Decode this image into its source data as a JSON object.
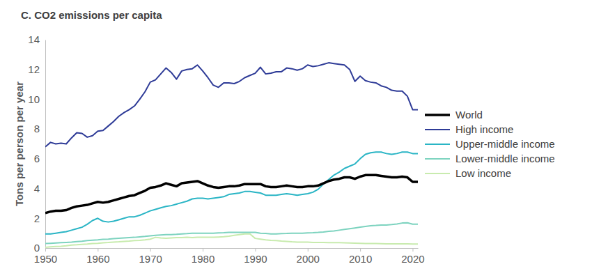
{
  "chart_data": {
    "type": "line",
    "title": "C. CO2 emissions per capita",
    "y_label": "Tons per person per year",
    "x": [
      1950,
      1951,
      1952,
      1953,
      1954,
      1955,
      1956,
      1957,
      1958,
      1959,
      1960,
      1961,
      1962,
      1963,
      1964,
      1965,
      1966,
      1967,
      1968,
      1969,
      1970,
      1971,
      1972,
      1973,
      1974,
      1975,
      1976,
      1977,
      1978,
      1979,
      1980,
      1981,
      1982,
      1983,
      1984,
      1985,
      1986,
      1987,
      1988,
      1989,
      1990,
      1991,
      1992,
      1993,
      1994,
      1995,
      1996,
      1997,
      1998,
      1999,
      2000,
      2001,
      2002,
      2003,
      2004,
      2005,
      2006,
      2007,
      2008,
      2009,
      2010,
      2011,
      2012,
      2013,
      2014,
      2015,
      2016,
      2017,
      2018,
      2019,
      2020,
      2021
    ],
    "xlim": [
      1950,
      2021
    ],
    "xticks": [
      1950,
      1960,
      1970,
      1980,
      1990,
      2000,
      2010,
      2020
    ],
    "ylim": [
      0,
      14
    ],
    "yticks": [
      0,
      2,
      4,
      6,
      8,
      10,
      12,
      14
    ],
    "grid": false,
    "legend": "right",
    "series": [
      {
        "name": "World",
        "color": "#000000",
        "values": [
          2.35,
          2.45,
          2.5,
          2.5,
          2.55,
          2.7,
          2.8,
          2.85,
          2.9,
          3.0,
          3.1,
          3.05,
          3.1,
          3.2,
          3.3,
          3.4,
          3.5,
          3.55,
          3.7,
          3.85,
          4.05,
          4.1,
          4.2,
          4.35,
          4.25,
          4.15,
          4.35,
          4.4,
          4.45,
          4.5,
          4.35,
          4.2,
          4.1,
          4.05,
          4.1,
          4.15,
          4.15,
          4.2,
          4.3,
          4.3,
          4.3,
          4.3,
          4.15,
          4.1,
          4.1,
          4.15,
          4.2,
          4.15,
          4.1,
          4.1,
          4.15,
          4.15,
          4.2,
          4.35,
          4.5,
          4.6,
          4.65,
          4.75,
          4.75,
          4.65,
          4.8,
          4.9,
          4.9,
          4.9,
          4.85,
          4.8,
          4.75,
          4.75,
          4.8,
          4.75,
          4.45,
          4.45
        ]
      },
      {
        "name": "High income",
        "color": "#2e3b97",
        "values": [
          6.8,
          7.1,
          7.0,
          7.05,
          7.0,
          7.4,
          7.75,
          7.7,
          7.45,
          7.55,
          7.85,
          7.9,
          8.2,
          8.5,
          8.85,
          9.1,
          9.3,
          9.55,
          10.0,
          10.5,
          11.15,
          11.3,
          11.7,
          12.1,
          11.8,
          11.35,
          11.9,
          12.0,
          12.05,
          12.3,
          11.9,
          11.45,
          10.95,
          10.8,
          11.1,
          11.1,
          11.05,
          11.2,
          11.45,
          11.6,
          11.75,
          12.15,
          11.7,
          11.75,
          11.85,
          11.85,
          12.1,
          12.05,
          11.95,
          12.05,
          12.3,
          12.2,
          12.25,
          12.35,
          12.45,
          12.4,
          12.35,
          12.3,
          12.0,
          11.2,
          11.55,
          11.25,
          11.15,
          11.1,
          10.9,
          10.8,
          10.6,
          10.55,
          10.55,
          10.2,
          9.3,
          9.3
        ]
      },
      {
        "name": "Upper-middle income",
        "color": "#2ab5c5",
        "values": [
          0.95,
          0.95,
          1.0,
          1.05,
          1.1,
          1.2,
          1.3,
          1.4,
          1.6,
          1.85,
          2.0,
          1.8,
          1.75,
          1.8,
          1.9,
          2.0,
          2.1,
          2.1,
          2.2,
          2.35,
          2.5,
          2.6,
          2.7,
          2.8,
          2.85,
          2.95,
          3.05,
          3.15,
          3.3,
          3.35,
          3.35,
          3.3,
          3.35,
          3.4,
          3.45,
          3.6,
          3.65,
          3.7,
          3.8,
          3.8,
          3.75,
          3.7,
          3.55,
          3.55,
          3.55,
          3.6,
          3.65,
          3.6,
          3.55,
          3.6,
          3.65,
          3.75,
          3.95,
          4.3,
          4.6,
          4.9,
          5.1,
          5.35,
          5.5,
          5.65,
          6.0,
          6.3,
          6.4,
          6.45,
          6.45,
          6.35,
          6.3,
          6.35,
          6.45,
          6.45,
          6.35,
          6.35
        ]
      },
      {
        "name": "Lower-middle income",
        "color": "#7dd3bf",
        "values": [
          0.3,
          0.32,
          0.34,
          0.36,
          0.38,
          0.4,
          0.43,
          0.46,
          0.5,
          0.53,
          0.55,
          0.58,
          0.6,
          0.63,
          0.66,
          0.68,
          0.7,
          0.72,
          0.75,
          0.78,
          0.82,
          0.85,
          0.88,
          0.9,
          0.9,
          0.92,
          0.95,
          0.97,
          1.0,
          1.0,
          1.0,
          1.0,
          1.0,
          1.02,
          1.03,
          1.05,
          1.05,
          1.05,
          1.05,
          1.05,
          1.05,
          1.0,
          0.98,
          0.95,
          0.95,
          0.97,
          0.98,
          1.0,
          1.0,
          1.0,
          1.02,
          1.03,
          1.05,
          1.08,
          1.12,
          1.15,
          1.2,
          1.25,
          1.3,
          1.35,
          1.4,
          1.45,
          1.5,
          1.52,
          1.55,
          1.55,
          1.58,
          1.62,
          1.68,
          1.7,
          1.6,
          1.6
        ]
      },
      {
        "name": "Low income",
        "color": "#c8ebae",
        "values": [
          0.05,
          0.08,
          0.1,
          0.12,
          0.15,
          0.2,
          0.22,
          0.25,
          0.27,
          0.3,
          0.32,
          0.35,
          0.37,
          0.4,
          0.42,
          0.45,
          0.47,
          0.5,
          0.52,
          0.55,
          0.6,
          0.72,
          0.68,
          0.65,
          0.68,
          0.7,
          0.7,
          0.72,
          0.7,
          0.72,
          0.72,
          0.72,
          0.72,
          0.74,
          0.76,
          0.8,
          0.85,
          0.9,
          0.95,
          0.95,
          0.65,
          0.6,
          0.55,
          0.52,
          0.5,
          0.47,
          0.45,
          0.42,
          0.4,
          0.4,
          0.4,
          0.38,
          0.37,
          0.37,
          0.36,
          0.36,
          0.36,
          0.35,
          0.34,
          0.33,
          0.32,
          0.31,
          0.3,
          0.3,
          0.29,
          0.28,
          0.28,
          0.28,
          0.28,
          0.28,
          0.27,
          0.27
        ]
      }
    ]
  }
}
